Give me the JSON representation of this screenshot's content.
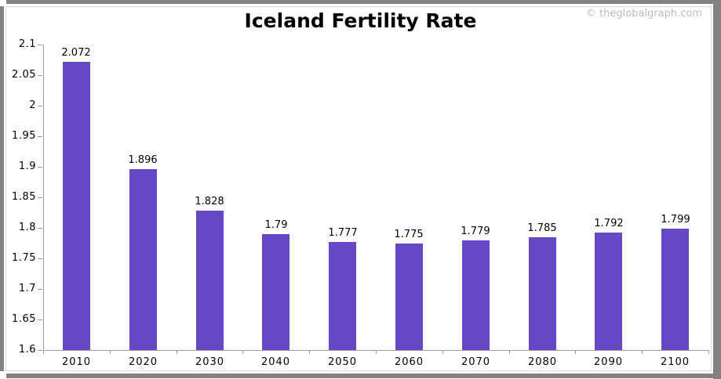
{
  "header": {
    "title": "Iceland Fertility Rate",
    "watermark": "© theglobalgraph.com"
  },
  "chart_data": {
    "type": "bar",
    "title": "Iceland Fertility Rate",
    "categories": [
      "2010",
      "2020",
      "2030",
      "2040",
      "2050",
      "2060",
      "2070",
      "2080",
      "2090",
      "2100"
    ],
    "values": [
      2.072,
      1.896,
      1.828,
      1.79,
      1.777,
      1.775,
      1.779,
      1.785,
      1.792,
      1.799
    ],
    "value_labels": [
      "2.072",
      "1.896",
      "1.828",
      "1.79",
      "1.777",
      "1.775",
      "1.779",
      "1.785",
      "1.792",
      "1.799"
    ],
    "xlabel": "",
    "ylabel": "",
    "ylim": [
      1.6,
      2.1
    ],
    "y_ticks": [
      {
        "label": "2.1",
        "value": 2.1
      },
      {
        "label": "2.05",
        "value": 2.05
      },
      {
        "label": "2",
        "value": 2.0
      },
      {
        "label": "1.95",
        "value": 1.95
      },
      {
        "label": "1.9",
        "value": 1.9
      },
      {
        "label": "1.85",
        "value": 1.85
      },
      {
        "label": "1.8",
        "value": 1.8
      },
      {
        "label": "1.75",
        "value": 1.75
      },
      {
        "label": "1.7",
        "value": 1.7
      },
      {
        "label": "1.65",
        "value": 1.65
      },
      {
        "label": "1.6",
        "value": 1.6
      }
    ],
    "grid": false,
    "legend": false,
    "bar_color": "#6647c6",
    "axis_color": "#9b9b9b",
    "title_color": "#000000",
    "watermark_color": "#b5bcc2"
  }
}
